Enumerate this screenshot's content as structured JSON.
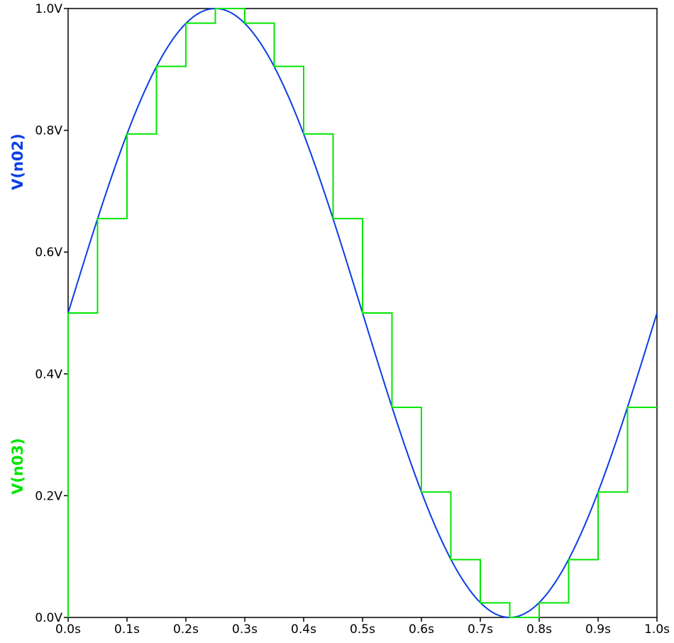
{
  "chart_data": {
    "type": "line",
    "title": "",
    "xlabel": "",
    "ylabel_series": [
      "V(n02)",
      "V(n03)"
    ],
    "xlim": [
      0.0,
      1.0
    ],
    "ylim": [
      0.0,
      1.0
    ],
    "x_ticks": [
      {
        "value": 0.0,
        "label": "0.0s"
      },
      {
        "value": 0.1,
        "label": "0.1s"
      },
      {
        "value": 0.2,
        "label": "0.2s"
      },
      {
        "value": 0.3,
        "label": "0.3s"
      },
      {
        "value": 0.4,
        "label": "0.4s"
      },
      {
        "value": 0.5,
        "label": "0.5s"
      },
      {
        "value": 0.6,
        "label": "0.6s"
      },
      {
        "value": 0.7,
        "label": "0.7s"
      },
      {
        "value": 0.8,
        "label": "0.8s"
      },
      {
        "value": 0.9,
        "label": "0.9s"
      },
      {
        "value": 1.0,
        "label": "1.0s"
      }
    ],
    "y_ticks": [
      {
        "value": 0.0,
        "label": "0.0V"
      },
      {
        "value": 0.2,
        "label": "0.2V"
      },
      {
        "value": 0.4,
        "label": "0.4V"
      },
      {
        "value": 0.6,
        "label": "0.6V"
      },
      {
        "value": 0.8,
        "label": "0.8V"
      },
      {
        "value": 1.0,
        "label": "1.0V"
      }
    ],
    "grid": false,
    "series": [
      {
        "name": "V(n02)",
        "color": "#0a3ee6",
        "kind": "sine",
        "offset": 0.5,
        "amplitude": 0.5,
        "frequency_hz": 1,
        "x": [
          0.0,
          0.05,
          0.1,
          0.15,
          0.2,
          0.25,
          0.3,
          0.35,
          0.4,
          0.45,
          0.5,
          0.55,
          0.6,
          0.65,
          0.7,
          0.75,
          0.8,
          0.85,
          0.9,
          0.95,
          1.0
        ],
        "values": [
          0.5,
          0.655,
          0.794,
          0.905,
          0.976,
          1.0,
          0.976,
          0.905,
          0.794,
          0.655,
          0.5,
          0.345,
          0.206,
          0.095,
          0.024,
          0.0,
          0.024,
          0.095,
          0.206,
          0.345,
          0.5
        ]
      },
      {
        "name": "V(n03)",
        "color": "#00e600",
        "kind": "step",
        "x": [
          0.0,
          0.05,
          0.1,
          0.15,
          0.2,
          0.25,
          0.3,
          0.35,
          0.4,
          0.45,
          0.5,
          0.55,
          0.6,
          0.65,
          0.7,
          0.75,
          0.8,
          0.85,
          0.9,
          0.95,
          1.0
        ],
        "values": [
          0.5,
          0.655,
          0.794,
          0.905,
          0.976,
          1.0,
          0.976,
          0.905,
          0.794,
          0.655,
          0.5,
          0.345,
          0.206,
          0.095,
          0.024,
          0.0,
          0.024,
          0.095,
          0.206,
          0.345,
          0.345
        ]
      }
    ]
  }
}
